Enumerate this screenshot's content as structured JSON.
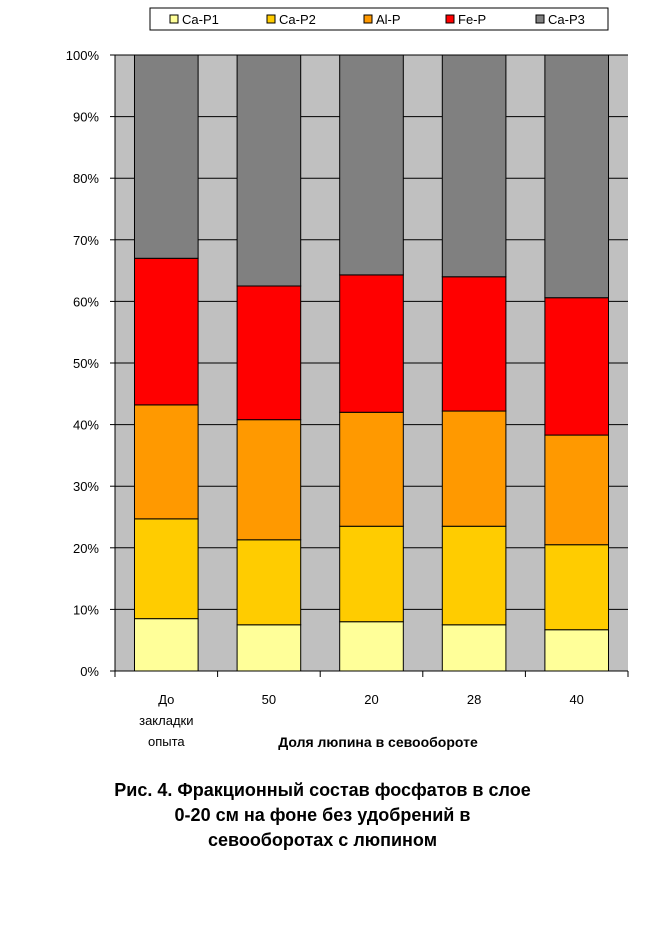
{
  "chart_data": {
    "type": "bar",
    "stacked": "percent",
    "categories": [
      [
        "До",
        "закладки",
        "опыта"
      ],
      [
        "50"
      ],
      [
        "20"
      ],
      [
        "28"
      ],
      [
        "40"
      ]
    ],
    "xlabel": "Доля люпина в севообороте",
    "ylabel": "",
    "ylim": [
      0,
      100
    ],
    "y_ticks": [
      "0%",
      "10%",
      "20%",
      "30%",
      "40%",
      "50%",
      "60%",
      "70%",
      "80%",
      "90%",
      "100%"
    ],
    "grid": true,
    "legend_position": "top",
    "plot_background": "#c0c0c0",
    "series": [
      {
        "name": "Ca-P1",
        "color": "#ffff99",
        "values": [
          8.5,
          7.5,
          8.0,
          7.5,
          6.7
        ]
      },
      {
        "name": "Ca-P2",
        "color": "#ffcc00",
        "values": [
          16.2,
          13.8,
          15.5,
          16.0,
          13.8
        ]
      },
      {
        "name": "Al-P",
        "color": "#ff9900",
        "values": [
          18.5,
          19.5,
          18.5,
          18.7,
          17.8
        ]
      },
      {
        "name": "Fe-P",
        "color": "#ff0000",
        "values": [
          23.8,
          21.7,
          22.3,
          21.8,
          22.3
        ]
      },
      {
        "name": "Ca-P3",
        "color": "#808080",
        "values": [
          33.0,
          37.5,
          35.7,
          36.0,
          39.4
        ]
      }
    ]
  },
  "caption": [
    "Рис. 4. Фракционный состав фосфатов в слое",
    "0-20 см на фоне без удобрений в",
    "севооборотах с люпином"
  ]
}
